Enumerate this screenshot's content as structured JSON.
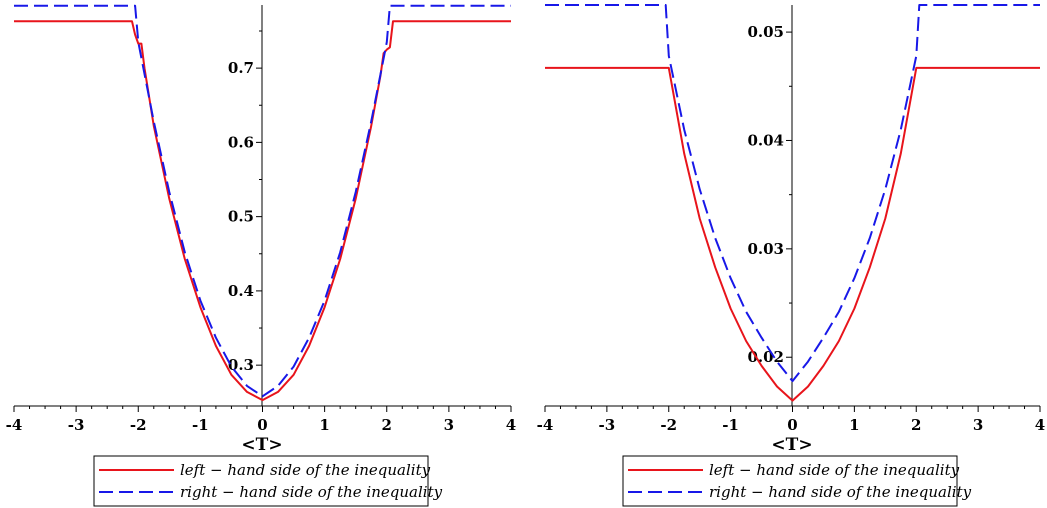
{
  "chart_data": [
    {
      "type": "line",
      "title": "",
      "xlabel": "<T>",
      "ylabel": "",
      "xlim": [
        -4,
        4
      ],
      "ylim": [
        0.245,
        0.785
      ],
      "x_ticks": [
        -4,
        -3,
        -2,
        -1,
        0,
        1,
        2,
        3,
        4
      ],
      "y_ticks": [
        0.3,
        0.4,
        0.5,
        0.6,
        0.7
      ],
      "x_tick_labels": [
        "-4",
        "-3",
        "-2",
        "-1",
        "0",
        "1",
        "2",
        "3",
        "4"
      ],
      "y_tick_labels": [
        "0.3",
        "0.4",
        "0.5",
        "0.6",
        "0.7"
      ],
      "grid": false,
      "legend_position": "bottom-center",
      "series": [
        {
          "name": "left − hand side of the inequality",
          "color": "#e8141b",
          "style": "solid",
          "x": [
            -4,
            -2.1,
            -2.05,
            -2.0,
            -1.95,
            -1.9,
            -1.75,
            -1.5,
            -1.25,
            -1.0,
            -0.75,
            -0.5,
            -0.25,
            0,
            0.25,
            0.5,
            0.75,
            1.0,
            1.25,
            1.5,
            1.75,
            1.9,
            1.95,
            2.0,
            2.05,
            2.1,
            4
          ],
          "y": [
            0.763,
            0.763,
            0.745,
            0.733,
            0.733,
            0.7,
            0.622,
            0.524,
            0.443,
            0.378,
            0.326,
            0.287,
            0.264,
            0.253,
            0.264,
            0.287,
            0.326,
            0.378,
            0.443,
            0.524,
            0.622,
            0.69,
            0.72,
            0.725,
            0.728,
            0.763,
            0.763
          ]
        },
        {
          "name": "right − hand side of the inequality",
          "color": "#1818e8",
          "style": "dashed",
          "x": [
            -4,
            -2.05,
            -2.0,
            -1.75,
            -1.5,
            -1.25,
            -1.0,
            -0.75,
            -0.5,
            -0.25,
            0,
            0.25,
            0.5,
            0.75,
            1.0,
            1.25,
            1.5,
            1.75,
            2.0,
            2.05,
            4
          ],
          "y": [
            0.784,
            0.784,
            0.735,
            0.628,
            0.533,
            0.452,
            0.387,
            0.337,
            0.298,
            0.272,
            0.258,
            0.272,
            0.298,
            0.337,
            0.387,
            0.452,
            0.533,
            0.628,
            0.735,
            0.784,
            0.784
          ]
        }
      ]
    },
    {
      "type": "line",
      "title": "",
      "xlabel": "<T>",
      "ylabel": "",
      "xlim": [
        -4,
        4
      ],
      "ylim": [
        0.0155,
        0.0525
      ],
      "x_ticks": [
        -4,
        -3,
        -2,
        -1,
        0,
        1,
        2,
        3,
        4
      ],
      "y_ticks": [
        0.02,
        0.03,
        0.04,
        0.05
      ],
      "x_tick_labels": [
        "-4",
        "-3",
        "-2",
        "-1",
        "0",
        "1",
        "2",
        "3",
        "4"
      ],
      "y_tick_labels": [
        "0.02",
        "0.03",
        "0.04",
        "0.05"
      ],
      "grid": false,
      "legend_position": "bottom-center",
      "series": [
        {
          "name": "left − hand side of the inequality",
          "color": "#e8141b",
          "style": "solid",
          "x": [
            -4,
            -2.0,
            -1.75,
            -1.5,
            -1.25,
            -1.0,
            -0.75,
            -0.5,
            -0.25,
            0,
            0.25,
            0.5,
            0.75,
            1.0,
            1.25,
            1.5,
            1.75,
            2.0,
            4
          ],
          "y": [
            0.0467,
            0.0467,
            0.0388,
            0.0328,
            0.0283,
            0.0245,
            0.0215,
            0.0192,
            0.0173,
            0.016,
            0.0173,
            0.0192,
            0.0215,
            0.0245,
            0.0283,
            0.0328,
            0.0388,
            0.0467,
            0.0467
          ]
        },
        {
          "name": "right − hand side of the inequality",
          "color": "#1818e8",
          "style": "dashed",
          "x": [
            -4,
            -2.05,
            -2.0,
            -1.75,
            -1.5,
            -1.25,
            -1.0,
            -0.75,
            -0.5,
            -0.25,
            0,
            0.25,
            0.5,
            0.75,
            1.0,
            1.25,
            1.5,
            1.75,
            2.0,
            2.05,
            4
          ],
          "y": [
            0.0525,
            0.0525,
            0.0478,
            0.041,
            0.0355,
            0.031,
            0.0273,
            0.0242,
            0.0218,
            0.0196,
            0.0178,
            0.0196,
            0.0218,
            0.0242,
            0.0273,
            0.031,
            0.0355,
            0.041,
            0.0478,
            0.0525,
            0.0525
          ]
        }
      ]
    }
  ],
  "legend": {
    "line1_em": "left",
    "line1_rest": " − hand side of the inequality",
    "line2_em": "right",
    "line2_rest": " − hand side of the inequality"
  }
}
